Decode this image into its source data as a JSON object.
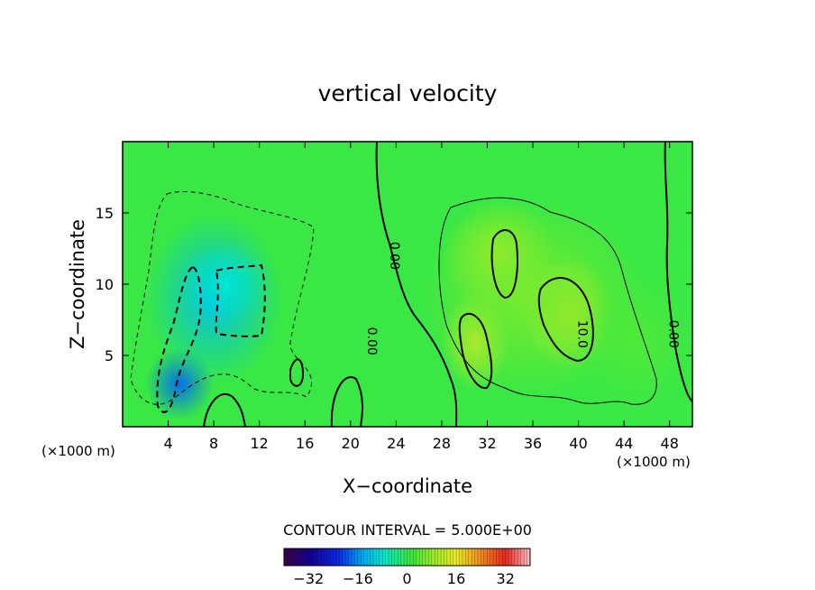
{
  "chart_data": {
    "type": "heatmap",
    "title": "vertical velocity",
    "xlabel": "X−coordinate",
    "ylabel": "Z−coordinate",
    "x_unit_left": "(×1000 m)",
    "x_unit_right": "(×1000 m)",
    "xlim": [
      0,
      50
    ],
    "ylim": [
      0,
      20
    ],
    "xticks": [
      4,
      8,
      12,
      16,
      20,
      24,
      28,
      32,
      36,
      40,
      44,
      48
    ],
    "yticks": [
      5,
      10,
      15
    ],
    "contour_interval_text": "CONTOUR INTERVAL = 5.000E+00",
    "contour_labels": [
      {
        "text": "0.00",
        "x": 23.5,
        "y": 12.0
      },
      {
        "text": "0.00",
        "x": 21.5,
        "y": 6.0
      },
      {
        "text": "10.0",
        "x": 40.0,
        "y": 6.5
      },
      {
        "text": "0.00",
        "x": 48.0,
        "y": 6.5
      }
    ],
    "colorbar": {
      "range": [
        -40,
        40
      ],
      "ticks": [
        -32,
        -16,
        0,
        16,
        32
      ],
      "tick_labels": [
        "−32",
        "−16",
        "0",
        "16",
        "32"
      ]
    },
    "blobs": [
      {
        "x": 5,
        "y": 3,
        "rx": 3,
        "ry": 2.5,
        "value": -18
      },
      {
        "x": 8,
        "y": 9,
        "rx": 6,
        "ry": 6,
        "value": -12
      },
      {
        "x": 9,
        "y": 10,
        "rx": 4,
        "ry": 3,
        "value": -8
      },
      {
        "x": 31,
        "y": 6,
        "rx": 3,
        "ry": 3.5,
        "value": 12
      },
      {
        "x": 33,
        "y": 12,
        "rx": 5,
        "ry": 4,
        "value": 9
      },
      {
        "x": 39,
        "y": 8,
        "rx": 4,
        "ry": 4,
        "value": 12
      },
      {
        "x": 36,
        "y": 9,
        "rx": 10,
        "ry": 7,
        "value": 6
      },
      {
        "x": 45,
        "y": 6,
        "rx": 5,
        "ry": 5,
        "value": 3
      }
    ],
    "field_base_value": 1
  }
}
